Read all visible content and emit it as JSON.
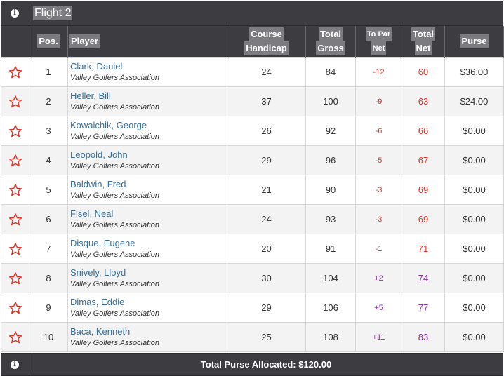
{
  "flight": {
    "title": "Flight 2",
    "info_icon": "i"
  },
  "columns": {
    "pos": "Pos.",
    "player": "Player",
    "course_handicap": [
      "Course",
      "Handicap"
    ],
    "total_gross": [
      "Total",
      "Gross"
    ],
    "to_par_net": [
      "To Par",
      "Net"
    ],
    "total_net": [
      "Total",
      "Net"
    ],
    "purse": "Purse"
  },
  "rows": [
    {
      "pos": "1",
      "name": "Clark, Daniel",
      "association": "Valley Golfers Association",
      "course_handicap": "24",
      "total_gross": "84",
      "to_par_net": "-12",
      "total_net": "60",
      "purse": "$36.00",
      "tone": "neg"
    },
    {
      "pos": "2",
      "name": "Heller, Bill",
      "association": "Valley Golfers Association",
      "course_handicap": "37",
      "total_gross": "100",
      "to_par_net": "-9",
      "total_net": "63",
      "purse": "$24.00",
      "tone": "neg"
    },
    {
      "pos": "3",
      "name": "Kowalchik, George",
      "association": "Valley Golfers Association",
      "course_handicap": "26",
      "total_gross": "92",
      "to_par_net": "-6",
      "total_net": "66",
      "purse": "$0.00",
      "tone": "neg"
    },
    {
      "pos": "4",
      "name": "Leopold, John",
      "association": "Valley Golfers Association",
      "course_handicap": "29",
      "total_gross": "96",
      "to_par_net": "-5",
      "total_net": "67",
      "purse": "$0.00",
      "tone": "neg"
    },
    {
      "pos": "5",
      "name": "Baldwin, Fred",
      "association": "Valley Golfers Association",
      "course_handicap": "21",
      "total_gross": "90",
      "to_par_net": "-3",
      "total_net": "69",
      "purse": "$0.00",
      "tone": "neg"
    },
    {
      "pos": "6",
      "name": "Fisel, Neal",
      "association": "Valley Golfers Association",
      "course_handicap": "24",
      "total_gross": "93",
      "to_par_net": "-3",
      "total_net": "69",
      "purse": "$0.00",
      "tone": "neg"
    },
    {
      "pos": "7",
      "name": "Disque, Eugene",
      "association": "Valley Golfers Association",
      "course_handicap": "20",
      "total_gross": "91",
      "to_par_net": "-1",
      "total_net": "71",
      "purse": "$0.00",
      "tone": "neg"
    },
    {
      "pos": "8",
      "name": "Snively, Lloyd",
      "association": "Valley Golfers Association",
      "course_handicap": "30",
      "total_gross": "104",
      "to_par_net": "+2",
      "total_net": "74",
      "purse": "$0.00",
      "tone": "pos"
    },
    {
      "pos": "9",
      "name": "Dimas, Eddie",
      "association": "Valley Golfers Association",
      "course_handicap": "29",
      "total_gross": "106",
      "to_par_net": "+5",
      "total_net": "77",
      "purse": "$0.00",
      "tone": "pos"
    },
    {
      "pos": "10",
      "name": "Baca, Kenneth",
      "association": "Valley Golfers Association",
      "course_handicap": "25",
      "total_gross": "108",
      "to_par_net": "+11",
      "total_net": "83",
      "purse": "$0.00",
      "tone": "pos"
    }
  ],
  "footer": {
    "total_purse": "Total Purse Allocated: $120.00",
    "info_icon": "i"
  },
  "icons": {
    "favorite": "star-outline-icon",
    "info": "info-icon"
  },
  "colors": {
    "header_bg": "#3d3c40",
    "label_bg": "#7c7b7f",
    "name_link": "#3a6f9e",
    "under_par": "#e0352b",
    "over_par": "#8b2eaa",
    "star_outline": "#e0352b"
  }
}
